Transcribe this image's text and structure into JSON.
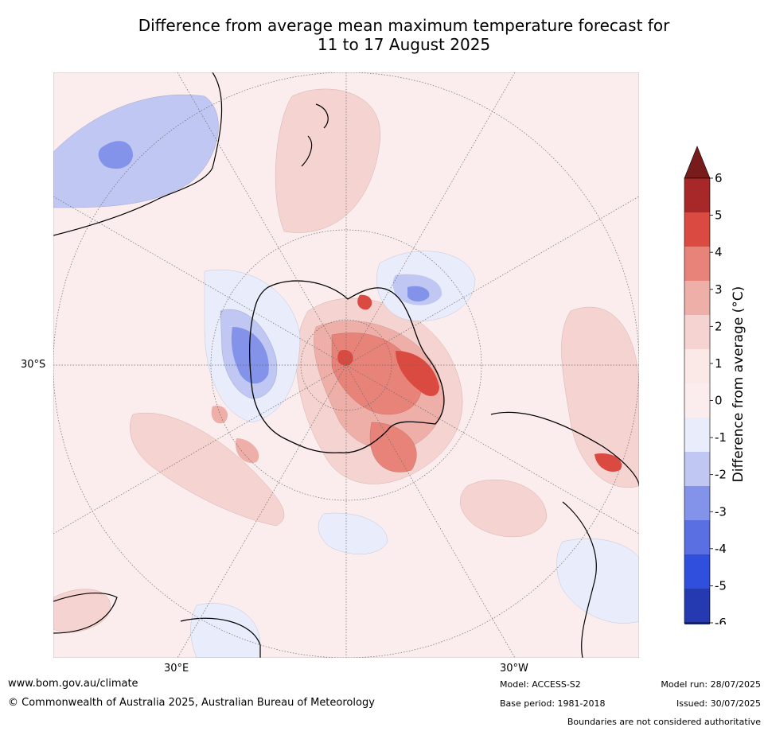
{
  "title": {
    "line1": "Difference from average mean maximum temperature forecast for",
    "line2": "11 to 17 August 2025"
  },
  "map": {
    "lat_label": "30°S",
    "lon_labels": [
      "30°E",
      "30°W"
    ]
  },
  "colorbar": {
    "title": "Difference from average (°C)",
    "tick_labels": [
      "6",
      "5",
      "4",
      "3",
      "2",
      "1",
      "0",
      "-1",
      "-2",
      "-3",
      "-4",
      "-5",
      "-6"
    ],
    "bins": [
      {
        "range": "> 6",
        "color": "#781b1b"
      },
      {
        "range": "5.5 to 6",
        "color": "#a8282a"
      },
      {
        "range": "4.5 to 5.5",
        "color": "#da4a40"
      },
      {
        "range": "3.5 to 4.5",
        "color": "#e88379"
      },
      {
        "range": "2.5 to 3.5",
        "color": "#edafa8"
      },
      {
        "range": "1.5 to 2.5",
        "color": "#f5d3d1"
      },
      {
        "range": "0.5 to 1.5",
        "color": "#fae9e7"
      },
      {
        "range": "-0.5 to 0.5",
        "color": "#fbeded"
      },
      {
        "range": "-1.5 to -0.5",
        "color": "#e8ecfb"
      },
      {
        "range": "-2.5 to -1.5",
        "color": "#bfc7f2"
      },
      {
        "range": "-3.5 to -2.5",
        "color": "#8393ea"
      },
      {
        "range": "-4.5 to -3.5",
        "color": "#5a70e2"
      },
      {
        "range": "-5.5 to -4.5",
        "color": "#2f4fdc"
      },
      {
        "range": "-6 to -5.5",
        "color": "#253ab0"
      },
      {
        "range": "< -6",
        "color": "#1e2a80"
      }
    ]
  },
  "footer": {
    "website": "www.bom.gov.au/climate",
    "copyright": "© Commonwealth of Australia 2025, Australian Bureau of Meteorology",
    "model": "Model: ACCESS-S2",
    "base_period": "Base period: 1981-2018",
    "model_run": "Model run: 28/07/2025",
    "issued": "Issued: 30/07/2025",
    "disclaimer": "Boundaries are not considered authoritative"
  }
}
